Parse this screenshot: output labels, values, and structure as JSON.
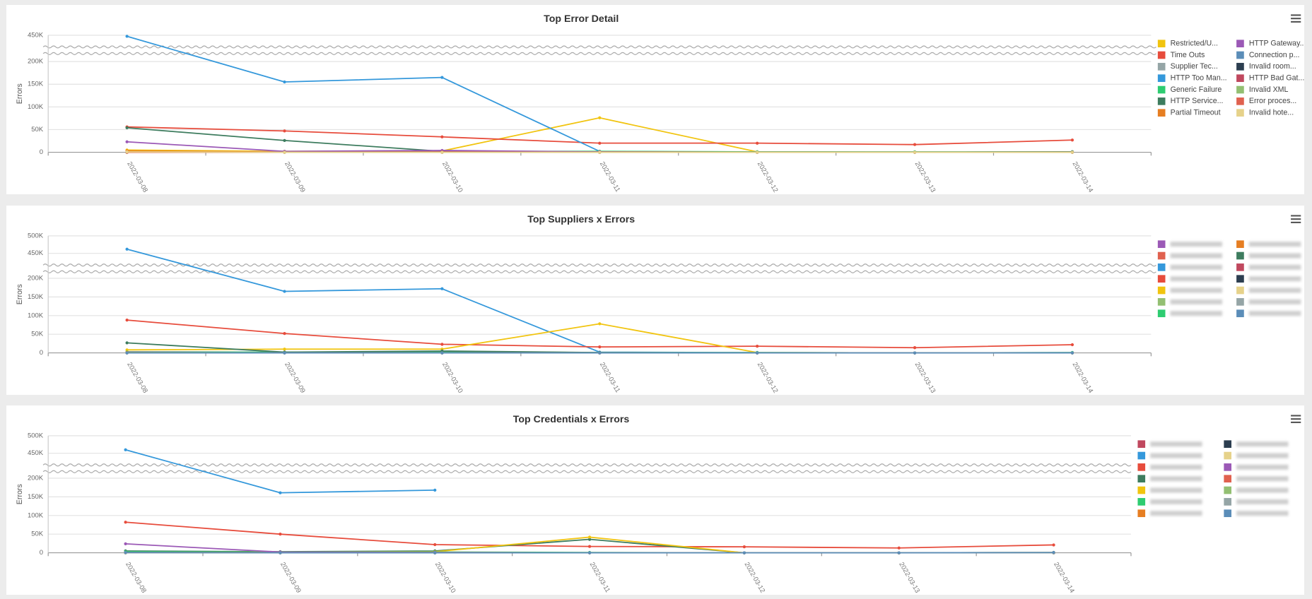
{
  "charts": [
    {
      "chart_data": {
        "type": "line",
        "title": "Top Error Detail",
        "y_label": "Errors",
        "categories": [
          "2022-03-08",
          "2022-03-09",
          "2022-03-10",
          "2022-03-11",
          "2022-03-12",
          "2022-03-13",
          "2022-03-14"
        ],
        "ylim": [
          0,
          450000
        ],
        "yticks": [
          0,
          {
            "value": 50000,
            "label": "50K"
          },
          {
            "value": 100000,
            "label": "100K"
          },
          {
            "value": 150000,
            "label": "150K"
          },
          {
            "value": 200000,
            "label": "200K"
          },
          {
            "value": 450000,
            "label": "450K"
          }
        ],
        "grid": true,
        "broken_axis": true,
        "legend": "right",
        "series": [
          {
            "name": "Restricted/U...",
            "color": "#f1c40f",
            "values": [
              5000,
              2000,
              3000,
              76000,
              1000,
              0,
              0
            ]
          },
          {
            "name": "Time Outs",
            "color": "#e74c3c",
            "values": [
              56000,
              47000,
              34000,
              20000,
              20000,
              17000,
              27000
            ]
          },
          {
            "name": "Supplier Tec...",
            "color": "#95a5a6",
            "values": [
              1000,
              1000,
              1000,
              1000,
              1000,
              0,
              1000
            ]
          },
          {
            "name": "HTTP Too Man...",
            "color": "#3498db",
            "values": [
              447000,
              155000,
              165000,
              2000,
              0,
              0,
              0
            ]
          },
          {
            "name": "Generic Failure",
            "color": "#2ecc71",
            "values": [
              1000,
              1000,
              2000,
              2000,
              1000,
              1000,
              1000
            ]
          },
          {
            "name": "HTTP Service...",
            "color": "#3d7c5e",
            "values": [
              54000,
              26000,
              2000,
              1000,
              0,
              0,
              1000
            ]
          },
          {
            "name": "Partial Timeout",
            "color": "#e67e22",
            "values": [
              3000,
              1000,
              1000,
              1000,
              0,
              0,
              0
            ]
          },
          {
            "name": "HTTP Gateway...",
            "color": "#9b59b6",
            "values": [
              23000,
              2000,
              4000,
              1000,
              0,
              0,
              0
            ]
          },
          {
            "name": "Connection p...",
            "color": "#5b8db8",
            "values": [
              0,
              0,
              0,
              0,
              0,
              0,
              0
            ]
          },
          {
            "name": "Invalid room...",
            "color": "#2c3e50",
            "values": [
              0,
              0,
              0,
              0,
              0,
              0,
              0
            ]
          },
          {
            "name": "HTTP Bad Gat...",
            "color": "#c0485e",
            "values": [
              0,
              0,
              1000,
              0,
              0,
              0,
              0
            ]
          },
          {
            "name": "Invalid XML",
            "color": "#93bf72",
            "values": [
              0,
              0,
              0,
              0,
              0,
              0,
              0
            ]
          },
          {
            "name": "Error proces...",
            "color": "#e0614f",
            "values": [
              0,
              0,
              0,
              0,
              0,
              0,
              0
            ]
          },
          {
            "name": "Invalid hote...",
            "color": "#e6d28a",
            "values": [
              1000,
              0,
              0,
              0,
              0,
              0,
              0
            ]
          }
        ]
      }
    },
    {
      "chart_data": {
        "type": "line",
        "title": "Top Suppliers x Errors",
        "y_label": "Errors",
        "categories": [
          "2022-03-08",
          "2022-03-09",
          "2022-03-10",
          "2022-03-11",
          "2022-03-12",
          "2022-03-13",
          "2022-03-14"
        ],
        "ylim": [
          0,
          500000
        ],
        "yticks": [
          0,
          {
            "value": 50000,
            "label": "50K"
          },
          {
            "value": 100000,
            "label": "100K"
          },
          {
            "value": 150000,
            "label": "150K"
          },
          {
            "value": 200000,
            "label": "200K"
          },
          {
            "value": 450000,
            "label": "450K"
          },
          {
            "value": 500000,
            "label": "500K"
          }
        ],
        "grid": true,
        "broken_axis": true,
        "legend": "right",
        "series": [
          {
            "color": "#9b59b6",
            "values": [
              3000,
              2000,
              1000,
              1000,
              0,
              0,
              0
            ]
          },
          {
            "color": "#e0614f",
            "values": [
              1000,
              1000,
              0,
              0,
              0,
              0,
              0
            ]
          },
          {
            "color": "#3498db",
            "values": [
              462000,
              165000,
              172000,
              2000,
              1000,
              0,
              1000
            ]
          },
          {
            "color": "#e74c3c",
            "values": [
              88000,
              52000,
              23000,
              16000,
              18000,
              14000,
              22000
            ]
          },
          {
            "color": "#f1c40f",
            "values": [
              8000,
              10000,
              10000,
              78000,
              1000,
              0,
              0
            ]
          },
          {
            "color": "#93bf72",
            "values": [
              0,
              0,
              0,
              0,
              0,
              0,
              0
            ]
          },
          {
            "color": "#2ecc71",
            "values": [
              2000,
              2000,
              3000,
              1000,
              1000,
              0,
              1000
            ]
          },
          {
            "color": "#e67e22",
            "values": [
              1000,
              0,
              0,
              0,
              0,
              0,
              0
            ]
          },
          {
            "color": "#3d7c5e",
            "values": [
              27000,
              2000,
              5000,
              1000,
              0,
              0,
              0
            ]
          },
          {
            "color": "#c0485e",
            "values": [
              0,
              0,
              0,
              0,
              0,
              0,
              0
            ]
          },
          {
            "color": "#2c3e50",
            "values": [
              0,
              0,
              0,
              0,
              0,
              0,
              0
            ]
          },
          {
            "color": "#e6d28a",
            "values": [
              0,
              0,
              0,
              0,
              0,
              0,
              0
            ]
          },
          {
            "color": "#95a5a6",
            "values": [
              0,
              0,
              0,
              0,
              0,
              0,
              0
            ]
          },
          {
            "color": "#5b8db8",
            "values": [
              0,
              0,
              0,
              0,
              0,
              0,
              0
            ]
          }
        ]
      }
    },
    {
      "chart_data": {
        "type": "line",
        "title": "Top Credentials x Errors",
        "y_label": "Errors",
        "categories": [
          "2022-03-08",
          "2022-03-09",
          "2022-03-10",
          "2022-03-11",
          "2022-03-12",
          "2022-03-13",
          "2022-03-14"
        ],
        "ylim": [
          0,
          500000
        ],
        "yticks": [
          0,
          {
            "value": 50000,
            "label": "50K"
          },
          {
            "value": 100000,
            "label": "100K"
          },
          {
            "value": 150000,
            "label": "150K"
          },
          {
            "value": 200000,
            "label": "200K"
          },
          {
            "value": 450000,
            "label": "450K"
          },
          {
            "value": 500000,
            "label": "500K"
          }
        ],
        "grid": true,
        "broken_axis": true,
        "legend": "right",
        "series": [
          {
            "color": "#c0485e",
            "values": [
              0,
              0,
              0,
              0,
              0,
              0,
              0
            ]
          },
          {
            "color": "#3498db",
            "values": [
              460000,
              161000,
              168000,
              null,
              null,
              null,
              null
            ]
          },
          {
            "color": "#e74c3c",
            "values": [
              82000,
              50000,
              22000,
              17000,
              16000,
              13000,
              21000
            ]
          },
          {
            "color": "#3d7c5e",
            "values": [
              5000,
              3000,
              5000,
              36000,
              0,
              0,
              0
            ]
          },
          {
            "color": "#f1c40f",
            "values": [
              2000,
              2000,
              3000,
              42000,
              0,
              0,
              1000
            ]
          },
          {
            "color": "#2ecc71",
            "values": [
              3000,
              2000,
              2000,
              1000,
              0,
              0,
              0
            ]
          },
          {
            "color": "#e67e22",
            "values": [
              1000,
              1000,
              1000,
              0,
              0,
              0,
              0
            ]
          },
          {
            "color": "#2c3e50",
            "values": [
              0,
              0,
              0,
              0,
              0,
              0,
              0
            ]
          },
          {
            "color": "#e6d28a",
            "values": [
              0,
              0,
              0,
              0,
              0,
              0,
              0
            ]
          },
          {
            "color": "#9b59b6",
            "values": [
              24000,
              2000,
              1000,
              0,
              0,
              0,
              0
            ]
          },
          {
            "color": "#e0614f",
            "values": [
              0,
              0,
              0,
              0,
              0,
              0,
              0
            ]
          },
          {
            "color": "#93bf72",
            "values": [
              0,
              0,
              0,
              0,
              0,
              0,
              0
            ]
          },
          {
            "color": "#95a5a6",
            "values": [
              0,
              0,
              0,
              0,
              0,
              0,
              0
            ]
          },
          {
            "color": "#5b8db8",
            "values": [
              1000,
              0,
              0,
              0,
              0,
              0,
              1000
            ]
          }
        ]
      }
    }
  ]
}
